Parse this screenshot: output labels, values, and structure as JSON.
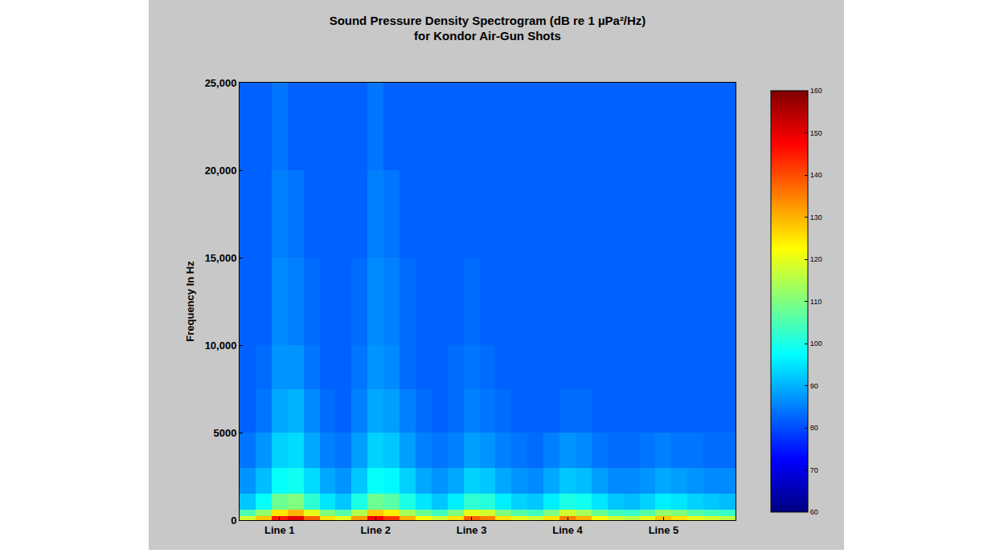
{
  "chart_data": {
    "type": "heatmap",
    "title": "Sound Pressure Density Spectrogram (dB re 1 µPa²/Hz)\nfor Kondor Air-Gun Shots",
    "y_label": "Frequency In Hz",
    "categories": [
      null,
      null,
      "Line 1",
      null,
      null,
      null,
      null,
      null,
      "Line 2",
      null,
      null,
      null,
      null,
      null,
      "Line 3",
      null,
      null,
      null,
      null,
      null,
      "Line 4",
      null,
      null,
      null,
      null,
      null,
      "Line 5",
      null,
      null,
      null,
      null
    ],
    "y_bins": [
      0,
      250,
      600,
      1500,
      3000,
      5000,
      7500,
      10000,
      15000,
      20000,
      25000
    ],
    "ylim": [
      0,
      25000
    ],
    "yticks": [
      0,
      5000,
      {
        "value": 10000,
        "label": "10,000"
      },
      {
        "value": 15000,
        "label": "15,000"
      },
      {
        "value": 20000,
        "label": "20,000"
      },
      {
        "value": 25000,
        "label": "25,000"
      }
    ],
    "cells": [
      [
        118,
        128,
        145,
        150,
        138,
        125,
        120,
        132,
        148,
        142,
        130,
        122,
        118,
        125,
        138,
        135,
        125,
        120,
        118,
        125,
        135,
        130,
        122,
        118,
        116,
        120,
        128,
        125,
        120,
        118,
        116
      ],
      [
        105,
        112,
        125,
        130,
        120,
        110,
        106,
        115,
        128,
        124,
        114,
        108,
        104,
        110,
        120,
        118,
        110,
        106,
        104,
        110,
        118,
        114,
        108,
        104,
        103,
        106,
        112,
        110,
        106,
        104,
        103
      ],
      [
        92,
        98,
        108,
        110,
        102,
        95,
        92,
        100,
        108,
        106,
        100,
        95,
        92,
        96,
        102,
        101,
        96,
        93,
        92,
        96,
        100,
        99,
        95,
        92,
        91,
        93,
        96,
        95,
        93,
        92,
        91
      ],
      [
        87,
        91,
        98,
        99,
        94,
        89,
        87,
        92,
        98,
        97,
        93,
        89,
        87,
        89,
        93,
        92,
        89,
        87,
        86,
        89,
        92,
        91,
        88,
        86,
        86,
        87,
        89,
        88,
        87,
        86,
        86
      ],
      [
        84,
        87,
        93,
        94,
        89,
        85,
        84,
        88,
        93,
        92,
        88,
        85,
        84,
        85,
        88,
        87,
        85,
        84,
        83,
        85,
        87,
        86,
        84,
        83,
        83,
        84,
        85,
        84,
        84,
        83,
        83
      ],
      [
        82,
        84,
        89,
        90,
        86,
        83,
        82,
        85,
        89,
        88,
        85,
        83,
        82,
        83,
        85,
        84,
        83,
        82,
        82,
        82,
        83,
        83,
        82,
        82,
        82,
        82,
        82,
        82,
        82,
        82,
        82
      ],
      [
        82,
        83,
        87,
        87,
        84,
        82,
        82,
        84,
        87,
        86,
        83,
        82,
        82,
        83,
        84,
        83,
        82,
        82,
        82,
        82,
        82,
        82,
        82,
        82,
        82,
        82,
        82,
        82,
        82,
        82,
        82
      ],
      [
        82,
        82,
        86,
        85,
        83,
        82,
        82,
        83,
        86,
        85,
        83,
        82,
        82,
        82,
        83,
        82,
        82,
        82,
        82,
        82,
        82,
        82,
        82,
        82,
        82,
        82,
        82,
        82,
        82,
        82,
        82
      ],
      [
        82,
        82,
        85,
        84,
        82,
        82,
        82,
        82,
        85,
        84,
        82,
        82,
        82,
        82,
        82,
        82,
        82,
        82,
        82,
        82,
        82,
        82,
        82,
        82,
        82,
        82,
        82,
        82,
        82,
        82,
        82
      ],
      [
        82,
        82,
        84,
        82,
        82,
        82,
        82,
        82,
        84,
        82,
        82,
        82,
        82,
        82,
        82,
        82,
        82,
        82,
        82,
        82,
        82,
        82,
        82,
        82,
        82,
        82,
        82,
        82,
        82,
        82,
        82
      ]
    ],
    "color_range": [
      60,
      160
    ],
    "color_ticks": [
      60,
      70,
      80,
      90,
      100,
      110,
      120,
      130,
      140,
      150,
      160
    ],
    "grid": false
  }
}
